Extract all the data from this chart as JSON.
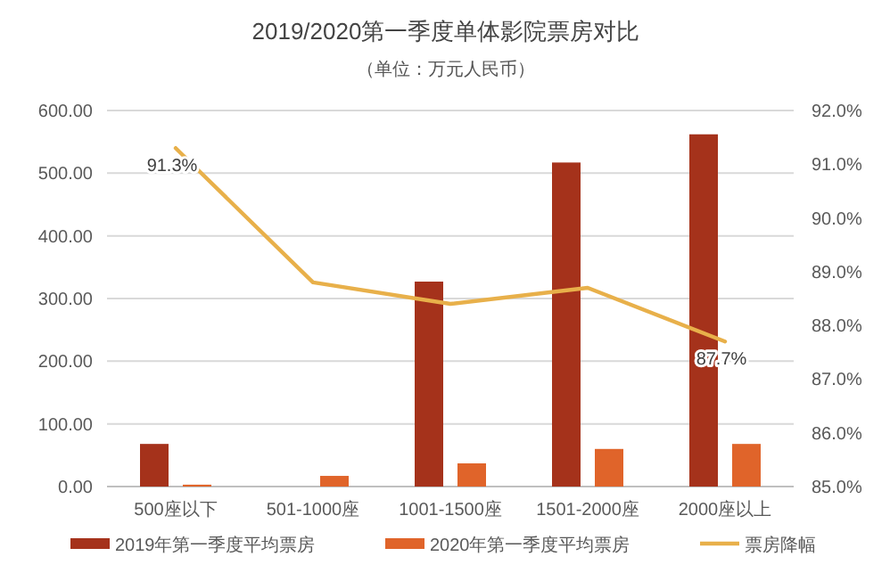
{
  "chart_data": {
    "type": "bar",
    "title": "2019/2020第一季度单体影院票房对比",
    "subtitle": "（单位：万元人民币）",
    "categories": [
      "500座以下",
      "501-1000座",
      "1001-1500座",
      "1501-2000座",
      "2000座以上"
    ],
    "series": [
      {
        "name": "2019年第一季度平均票房",
        "color": "#a5321b",
        "values": [
          68,
          null,
          327,
          517,
          562
        ]
      },
      {
        "name": "2020年第一季度平均票房",
        "color": "#e0642a",
        "values": [
          3,
          17,
          37,
          60,
          68
        ]
      },
      {
        "name": "票房降幅",
        "type": "line",
        "axis": "y2",
        "color": "#e8b04a",
        "values": [
          91.3,
          88.8,
          88.4,
          88.7,
          87.7
        ],
        "value_labels": [
          "91.3%",
          null,
          null,
          null,
          "87.7%"
        ]
      }
    ],
    "ylim": [
      0,
      600
    ],
    "yticks": [
      {
        "value": 0,
        "label": "0.00"
      },
      {
        "value": 100,
        "label": "100.00"
      },
      {
        "value": 200,
        "label": "200.00"
      },
      {
        "value": 300,
        "label": "300.00"
      },
      {
        "value": 400,
        "label": "400.00"
      },
      {
        "value": 500,
        "label": "500.00"
      },
      {
        "value": 600,
        "label": "600.00"
      }
    ],
    "y2lim": [
      85,
      92
    ],
    "y2ticks": [
      {
        "value": 85,
        "label": "85.0%"
      },
      {
        "value": 86,
        "label": "86.0%"
      },
      {
        "value": 87,
        "label": "87.0%"
      },
      {
        "value": 88,
        "label": "88.0%"
      },
      {
        "value": 89,
        "label": "89.0%"
      },
      {
        "value": 90,
        "label": "90.0%"
      },
      {
        "value": 91,
        "label": "91.0%"
      },
      {
        "value": 92,
        "label": "92.0%"
      }
    ],
    "grid": "y",
    "legend": "bottom"
  }
}
